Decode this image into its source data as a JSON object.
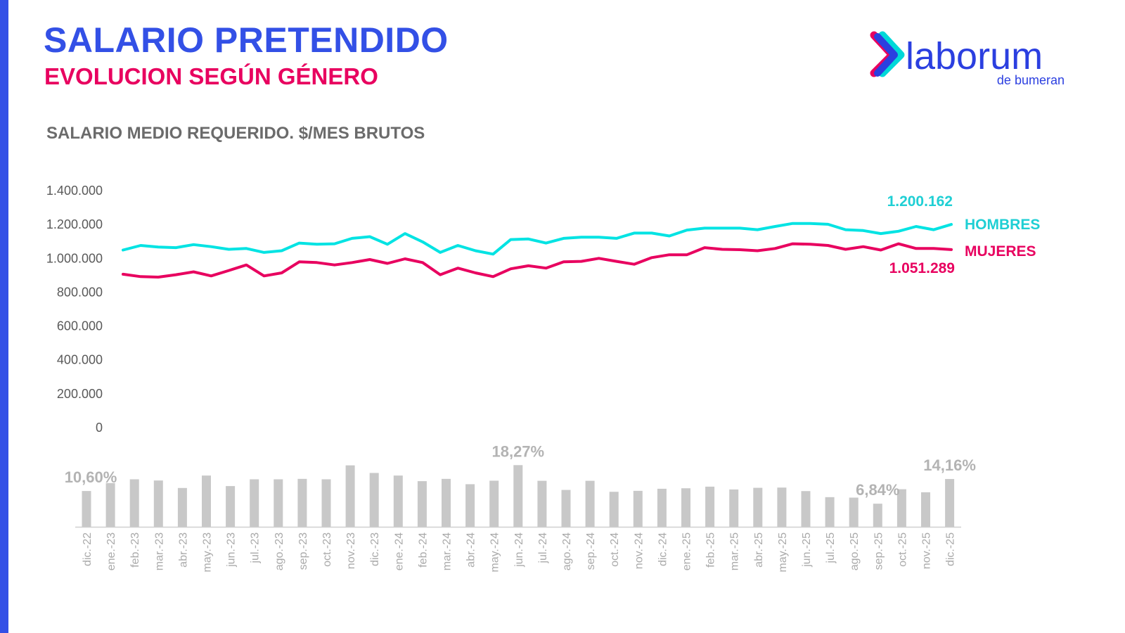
{
  "header": {
    "title": "SALARIO PRETENDIDO",
    "subtitle": "EVOLUCION SEGÚN GÉNERO",
    "logo_text": "laborum",
    "logo_subtext": "de bumeran"
  },
  "colors": {
    "accent_blue": "#3350e6",
    "hombres": "#00e3e3",
    "mujeres": "#e8005f",
    "bars": "#c8c8c8",
    "bar_labels": "#b3b3b3"
  },
  "chart_data": [
    {
      "type": "line",
      "title": "SALARIO MEDIO REQUERIDO. $/MES BRUTOS",
      "ylim": [
        0,
        1400000
      ],
      "yticks": [
        "0",
        "200.000",
        "400.000",
        "600.000",
        "800.000",
        "1.000.000",
        "1.200.000",
        "1.400.000"
      ],
      "ytick_values": [
        0,
        200000,
        400000,
        600000,
        800000,
        1000000,
        1200000,
        1400000
      ],
      "grid": false,
      "series": [
        {
          "name": "HOMBRES",
          "end_label": "1.200.162",
          "values": [
            1049000,
            1076000,
            1067000,
            1063000,
            1081000,
            1069000,
            1053000,
            1058000,
            1035000,
            1045000,
            1090000,
            1083000,
            1086000,
            1118000,
            1128000,
            1083000,
            1146000,
            1097000,
            1035000,
            1076000,
            1045000,
            1025000,
            1111000,
            1114000,
            1090000,
            1118000,
            1125000,
            1125000,
            1118000,
            1149000,
            1149000,
            1132000,
            1167000,
            1178000,
            1178000,
            1178000,
            1169000,
            1188000,
            1206000,
            1206000,
            1201000,
            1169000,
            1164000,
            1146000,
            1160000,
            1188000,
            1169000,
            1200162
          ]
        },
        {
          "name": "MUJERES",
          "end_label": "1.051.289",
          "values": [
            906000,
            892000,
            889000,
            903000,
            920000,
            896000,
            928000,
            961000,
            896000,
            914000,
            979000,
            975000,
            961000,
            975000,
            993000,
            970000,
            997000,
            975000,
            903000,
            942000,
            914000,
            892000,
            938000,
            956000,
            942000,
            979000,
            982000,
            1000000,
            982000,
            965000,
            1004000,
            1021000,
            1021000,
            1063000,
            1053000,
            1051000,
            1045000,
            1058000,
            1086000,
            1083000,
            1076000,
            1053000,
            1069000,
            1049000,
            1086000,
            1058000,
            1058000,
            1051289
          ]
        }
      ]
    },
    {
      "type": "bar",
      "title": "",
      "categories": [
        "dic.-22",
        "ene.-23",
        "feb.-23",
        "mar.-23",
        "abr.-23",
        "may.-23",
        "jun.-23",
        "jul.-23",
        "ago.-23",
        "sep.-23",
        "oct.-23",
        "nov.-23",
        "dic.-23",
        "ene.-24",
        "feb.-24",
        "mar.-24",
        "abr.-24",
        "may.-24",
        "jun.-24",
        "jul.-24",
        "ago.-24",
        "sep.-24",
        "oct.-24",
        "nov.-24",
        "dic.-24",
        "ene.-25",
        "feb.-25",
        "mar.-25",
        "abr.-25",
        "may.-25",
        "jun.-25",
        "jul.-25",
        "ago.-25",
        "sep.-25",
        "oct.-25",
        "nov.-25",
        "dic.-25"
      ],
      "values": [
        10.6,
        12.96,
        14.07,
        13.72,
        11.5,
        15.18,
        12.06,
        14.07,
        14.07,
        14.2,
        14.07,
        18.2,
        15.95,
        15.18,
        13.52,
        14.2,
        12.62,
        13.66,
        18.27,
        13.63,
        10.92,
        13.63,
        10.37,
        10.65,
        11.27,
        11.41,
        11.89,
        11.06,
        11.55,
        11.62,
        10.58,
        8.78,
        8.64,
        6.84,
        11.13,
        10.23,
        14.16
      ],
      "unit": "%",
      "data_labels": [
        {
          "category": "dic.-22",
          "text": "10,60%"
        },
        {
          "category": "jun.-24",
          "text": "18,27%"
        },
        {
          "category": "sep.-25",
          "text": "6,84%"
        },
        {
          "category": "dic.-25",
          "text": "14,16%"
        }
      ]
    }
  ]
}
